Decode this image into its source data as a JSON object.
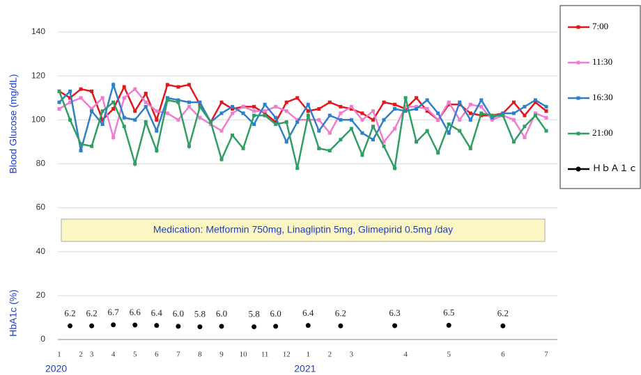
{
  "chart_data": {
    "type": "line",
    "y_label": "Blood Glucose (mg/dL)",
    "y_label_lower": "HbA1c (%)",
    "annotation": "Medication: Metformin 750mg, Linagliptin 5mg, Glimepirid 0.5mg /day",
    "categories": [
      "1",
      null,
      "2",
      "3",
      null,
      "4",
      null,
      "5",
      null,
      "6",
      null,
      "7",
      null,
      "8",
      null,
      "9",
      null,
      "10",
      null,
      "11",
      null,
      "12",
      null,
      "1",
      null,
      "2",
      null,
      "3",
      null,
      null,
      null,
      null,
      "4",
      null,
      null,
      null,
      "5",
      null,
      null,
      null,
      null,
      "6",
      null,
      null,
      null,
      "7"
    ],
    "year_labels": [
      "2020",
      "2021"
    ],
    "ylim": [
      0,
      140
    ],
    "yticks": [
      0,
      20,
      40,
      60,
      80,
      100,
      120,
      140
    ],
    "grid": true,
    "series": [
      {
        "name": "7:00",
        "color": "#e3161e",
        "values": [
          113,
          110,
          114,
          113,
          100,
          105,
          115,
          104,
          112,
          100,
          116,
          115,
          116,
          107,
          99,
          108,
          105,
          106,
          106,
          103,
          99,
          108,
          110,
          104,
          105,
          108,
          106,
          105,
          103,
          100,
          108,
          107,
          105,
          110,
          104,
          100,
          107,
          107,
          103,
          102,
          102,
          103,
          108,
          102,
          108,
          104
        ]
      },
      {
        "name": "11:30",
        "color": "#f07ccf",
        "values": [
          105,
          108,
          110,
          105,
          110,
          92,
          110,
          114,
          108,
          104,
          103,
          100,
          106,
          101,
          98,
          95,
          103,
          106,
          104,
          104,
          106,
          104,
          100,
          100,
          100,
          94,
          103,
          106,
          100,
          104,
          90,
          96,
          106,
          106,
          105,
          100,
          108,
          100,
          107,
          106,
          100,
          102,
          100,
          92,
          103,
          101
        ]
      },
      {
        "name": "16:30",
        "color": "#2f7fc8",
        "values": [
          108,
          113,
          86,
          104,
          98,
          116,
          101,
          100,
          106,
          95,
          110,
          109,
          108,
          108,
          99,
          103,
          106,
          103,
          98,
          107,
          101,
          90,
          99,
          107,
          95,
          102,
          100,
          100,
          94,
          91,
          100,
          105,
          104,
          105,
          109,
          103,
          94,
          108,
          100,
          109,
          101,
          103,
          103,
          106,
          109,
          106
        ]
      },
      {
        "name": "21:00",
        "color": "#2e9e63",
        "values": [
          113,
          100,
          89,
          88,
          104,
          108,
          97,
          80,
          99,
          86,
          109,
          108,
          88,
          106,
          99,
          82,
          93,
          87,
          102,
          102,
          98,
          99,
          78,
          102,
          87,
          86,
          91,
          96,
          84,
          97,
          88,
          78,
          110,
          90,
          95,
          85,
          98,
          95,
          87,
          103,
          102,
          102,
          90,
          97,
          102,
          95
        ]
      },
      {
        "name": "ＨｂＡ１ｃ",
        "color": "#000000",
        "markers_only": true,
        "values": [
          null,
          6.2,
          null,
          6.2,
          null,
          6.7,
          null,
          6.6,
          null,
          6.4,
          null,
          6.0,
          null,
          5.8,
          null,
          6.0,
          null,
          null,
          5.8,
          null,
          6.0,
          null,
          null,
          6.4,
          null,
          null,
          6.2,
          null,
          null,
          null,
          null,
          6.3,
          null,
          null,
          null,
          null,
          6.5,
          null,
          null,
          null,
          null,
          6.2,
          null,
          null,
          null,
          null
        ],
        "value_labels": [
          null,
          "6.2",
          null,
          "6.2",
          null,
          "6.7",
          null,
          "6.6",
          null,
          "6.4",
          null,
          "6.0",
          null,
          "5.8",
          null,
          "6.0",
          null,
          null,
          "5.8",
          null,
          "6.0",
          null,
          null,
          "6.4",
          null,
          null,
          "6.2",
          null,
          null,
          null,
          null,
          "6.3",
          null,
          null,
          null,
          null,
          "6.5",
          null,
          null,
          null,
          null,
          "6.2",
          null,
          null,
          null,
          null
        ]
      }
    ]
  }
}
